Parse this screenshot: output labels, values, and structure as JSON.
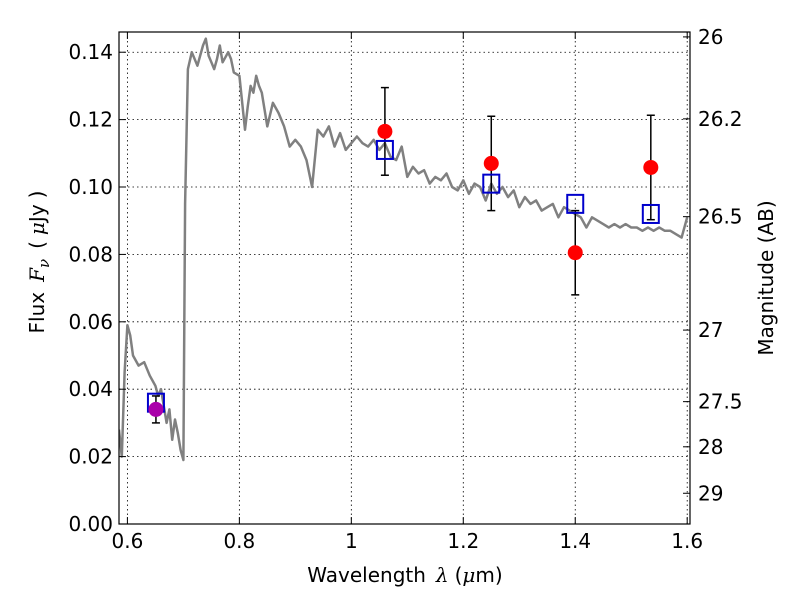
{
  "chart_data": {
    "type": "scatter",
    "title": "",
    "xlabel": {
      "prefix": "Wavelength",
      "symbol": "λ",
      "unit_open": "(",
      "unit_symbol": "μ",
      "unit_rest": "m)"
    },
    "ylabel": {
      "prefix": "Flux",
      "symbol": "F",
      "subscript": "ν",
      "unit_open": "(",
      "unit_symbol": "μ",
      "unit_rest": "Jy",
      "unit_close": ")"
    },
    "y2label": "Magnitude (AB)",
    "xlim": [
      0.585,
      1.605
    ],
    "ylim": [
      0.0,
      0.146
    ],
    "x_ticks": [
      0.6,
      0.8,
      1.0,
      1.2,
      1.4,
      1.6
    ],
    "x_tick_labels": [
      "0.6",
      "0.8",
      "1",
      "1.2",
      "1.4",
      "1.6"
    ],
    "y_ticks": [
      0.0,
      0.02,
      0.04,
      0.06,
      0.08,
      0.1,
      0.12,
      0.14
    ],
    "y_tick_labels": [
      "0.00",
      "0.02",
      "0.04",
      "0.06",
      "0.08",
      "0.10",
      "0.12",
      "0.14"
    ],
    "y2_ticks": [
      26.0,
      26.2,
      26.5,
      27.0,
      27.5,
      28.0,
      29.0
    ],
    "y2_tick_labels": [
      "26",
      "26.2",
      "26.5",
      "27",
      "27.5",
      "28",
      "29"
    ],
    "grid": true,
    "colors": {
      "model": "#808080",
      "observed": "#ff0000",
      "synthetic": "#0000cc",
      "special": "#aa00aa",
      "errorbar": "#000000"
    },
    "series": [
      {
        "kind": "line",
        "x": [
          0.585,
          0.59,
          0.595,
          0.6,
          0.605,
          0.61,
          0.62,
          0.63,
          0.64,
          0.65,
          0.655,
          0.66,
          0.665,
          0.67,
          0.675,
          0.68,
          0.685,
          0.69,
          0.695,
          0.7,
          0.703,
          0.708,
          0.715,
          0.725,
          0.735,
          0.74,
          0.745,
          0.75,
          0.755,
          0.76,
          0.765,
          0.77,
          0.78,
          0.785,
          0.79,
          0.8,
          0.805,
          0.81,
          0.815,
          0.82,
          0.825,
          0.83,
          0.835,
          0.84,
          0.85,
          0.86,
          0.87,
          0.88,
          0.89,
          0.9,
          0.91,
          0.92,
          0.93,
          0.94,
          0.95,
          0.96,
          0.97,
          0.98,
          0.99,
          1.0,
          1.01,
          1.02,
          1.03,
          1.04,
          1.05,
          1.06,
          1.07,
          1.08,
          1.09,
          1.1,
          1.11,
          1.12,
          1.13,
          1.14,
          1.15,
          1.16,
          1.17,
          1.18,
          1.19,
          1.2,
          1.21,
          1.22,
          1.23,
          1.24,
          1.25,
          1.26,
          1.27,
          1.28,
          1.29,
          1.3,
          1.31,
          1.32,
          1.33,
          1.34,
          1.35,
          1.36,
          1.37,
          1.38,
          1.39,
          1.4,
          1.41,
          1.42,
          1.43,
          1.44,
          1.45,
          1.46,
          1.47,
          1.48,
          1.49,
          1.5,
          1.51,
          1.52,
          1.53,
          1.54,
          1.55,
          1.56,
          1.57,
          1.58,
          1.59,
          1.6
        ],
        "y": [
          0.028,
          0.02,
          0.045,
          0.059,
          0.056,
          0.05,
          0.047,
          0.048,
          0.044,
          0.041,
          0.038,
          0.04,
          0.035,
          0.03,
          0.034,
          0.025,
          0.031,
          0.027,
          0.022,
          0.019,
          0.095,
          0.135,
          0.14,
          0.136,
          0.142,
          0.144,
          0.139,
          0.137,
          0.135,
          0.138,
          0.142,
          0.137,
          0.14,
          0.138,
          0.134,
          0.133,
          0.125,
          0.117,
          0.124,
          0.13,
          0.128,
          0.133,
          0.13,
          0.128,
          0.118,
          0.125,
          0.122,
          0.118,
          0.112,
          0.114,
          0.112,
          0.108,
          0.1,
          0.117,
          0.115,
          0.118,
          0.112,
          0.116,
          0.111,
          0.113,
          0.115,
          0.113,
          0.112,
          0.114,
          0.111,
          0.113,
          0.109,
          0.108,
          0.112,
          0.103,
          0.106,
          0.104,
          0.105,
          0.101,
          0.103,
          0.102,
          0.104,
          0.1,
          0.099,
          0.102,
          0.098,
          0.101,
          0.1,
          0.096,
          0.101,
          0.098,
          0.1,
          0.097,
          0.099,
          0.094,
          0.097,
          0.095,
          0.096,
          0.093,
          0.094,
          0.095,
          0.091,
          0.094,
          0.093,
          0.092,
          0.091,
          0.088,
          0.091,
          0.09,
          0.089,
          0.088,
          0.089,
          0.088,
          0.089,
          0.088,
          0.088,
          0.087,
          0.088,
          0.087,
          0.088,
          0.087,
          0.087,
          0.086,
          0.085,
          0.091
        ]
      },
      {
        "kind": "points",
        "style": "filled-circle",
        "x": [
          1.06,
          1.25,
          1.4,
          1.535
        ],
        "y": [
          0.1165,
          0.107,
          0.0805,
          0.1058
        ],
        "yerr": [
          0.013,
          0.014,
          0.0125,
          0.0155
        ]
      },
      {
        "kind": "points",
        "style": "open-square",
        "x": [
          0.651,
          1.06,
          1.25,
          1.4,
          1.535
        ],
        "y": [
          0.036,
          0.111,
          0.101,
          0.095,
          0.092
        ]
      },
      {
        "kind": "points",
        "style": "filled-circle-special",
        "x": [
          0.651
        ],
        "y": [
          0.034
        ],
        "yerr": [
          0.004
        ]
      }
    ]
  }
}
